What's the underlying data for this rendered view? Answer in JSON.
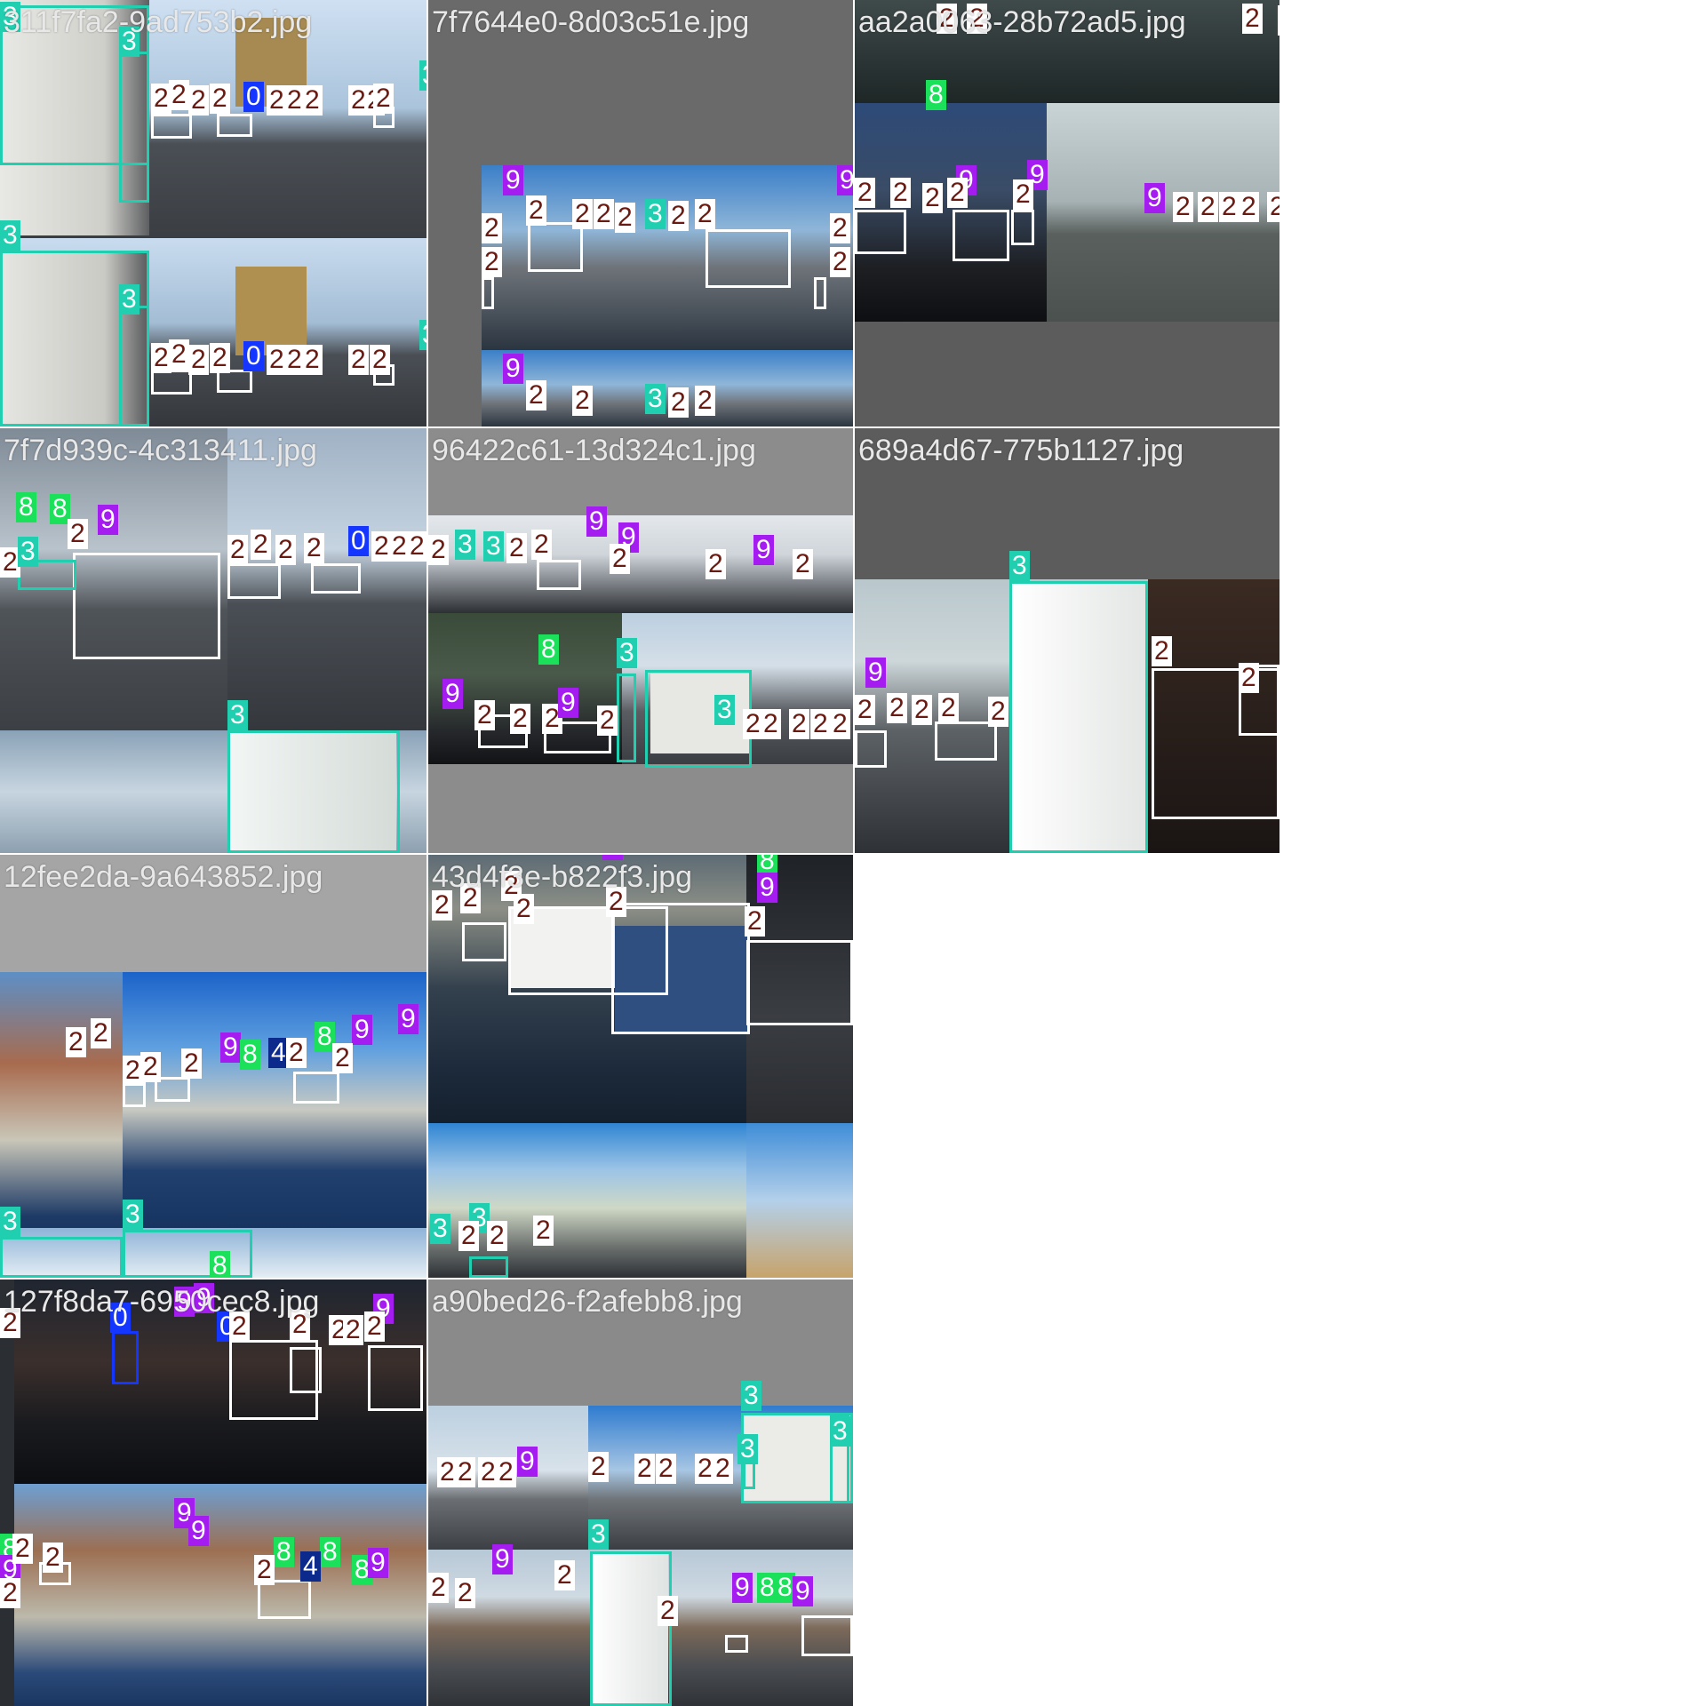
{
  "mosaic": {
    "tiles": [
      {
        "name": "311f7fa2-9ad753b2.jpg",
        "labels": [
          "3",
          "3",
          "3",
          "2",
          "2",
          "2",
          "2",
          "0",
          "2",
          "2",
          "2",
          "2",
          "2",
          "2",
          "3",
          "3",
          "2",
          "2",
          "2",
          "2",
          "0",
          "2",
          "2",
          "2",
          "2",
          "2",
          "3"
        ]
      },
      {
        "name": "7f7644e0-8d03c51e.jpg",
        "labels": [
          "9",
          "9",
          "2",
          "2",
          "2",
          "2",
          "2",
          "2",
          "3",
          "2",
          "2",
          "2",
          "2",
          "9",
          "2",
          "3",
          "2",
          "2",
          "2"
        ]
      },
      {
        "name": "aa2a0063-28b72ad5.jpg",
        "labels": [
          "2",
          "2",
          "2",
          "2",
          "8",
          "9",
          "9",
          "2",
          "2",
          "2",
          "2",
          "2",
          "9",
          "2",
          "2",
          "2",
          "2",
          "2"
        ]
      },
      {
        "name": "7f7d939c-4c313411.jpg",
        "labels": [
          "8",
          "8",
          "9",
          "2",
          "2",
          "3",
          "2",
          "2",
          "2",
          "2",
          "0",
          "2",
          "2",
          "2",
          "3"
        ]
      },
      {
        "name": "96422c61-13d324c1.jpg",
        "labels": [
          "3",
          "3",
          "2",
          "2",
          "2",
          "9",
          "9",
          "2",
          "9",
          "2",
          "2",
          "8",
          "3",
          "9",
          "2",
          "2",
          "2",
          "2",
          "9",
          "3",
          "2",
          "2",
          "2",
          "2",
          "2"
        ]
      },
      {
        "name": "689a4d67-775b1127.jpg",
        "labels": [
          "3",
          "2",
          "9",
          "2",
          "2",
          "2",
          "2",
          "2",
          "2"
        ]
      },
      {
        "name": "12fee2da-9a643852.jpg",
        "labels": [
          "2",
          "2",
          "2",
          "2",
          "2",
          "9",
          "8",
          "4",
          "2",
          "8",
          "9",
          "2",
          "9",
          "3",
          "3",
          "8"
        ]
      },
      {
        "name": "43d4f3e-b822f3.jpg",
        "labels": [
          "9",
          "8",
          "9",
          "2",
          "2",
          "2",
          "2",
          "2",
          "2",
          "3",
          "3",
          "2",
          "2",
          "2"
        ]
      },
      {
        "name": "127f8da7-6950cec8.jpg",
        "labels": [
          "9",
          "9",
          "9",
          "2",
          "0",
          "0",
          "2",
          "2",
          "2",
          "2",
          "2",
          "9",
          "9",
          "8",
          "8",
          "4",
          "8",
          "9",
          "2",
          "2",
          "8",
          "9",
          "2",
          "2"
        ]
      },
      {
        "name": "a90bed26-f2afebb8.jpg",
        "labels": [
          "3",
          "3",
          "3",
          "2",
          "2",
          "2",
          "2",
          "9",
          "2",
          "2",
          "2",
          "2",
          "2",
          "3",
          "9",
          "8",
          "8",
          "9",
          "2",
          "2",
          "2",
          "2",
          "9"
        ]
      }
    ]
  },
  "colors": {
    "class_0": "#1536ff",
    "class_2": "#ffffff",
    "class_3": "#1fcfb0",
    "class_4": "#0b2a8c",
    "class_8": "#1be05a",
    "class_9": "#a41cf0",
    "letterbox": "#6a6a6a"
  }
}
